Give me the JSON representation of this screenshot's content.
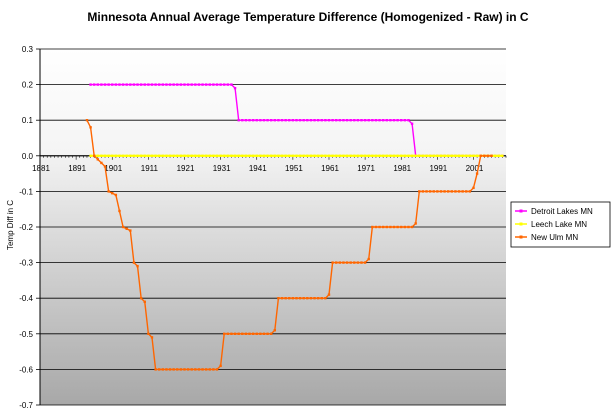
{
  "chart_data": {
    "type": "line",
    "title": "Minnesota Annual Average Temperature Difference (Homogenized - Raw) in C",
    "xlabel": "",
    "ylabel": "Temp Diff in C",
    "xlim": [
      1881,
      2010
    ],
    "ylim": [
      -0.7,
      0.3
    ],
    "x_ticks": [
      "1881",
      "1891",
      "1901",
      "1911",
      "1921",
      "1931",
      "1941",
      "1951",
      "1961",
      "1971",
      "1981",
      "1991",
      "2001"
    ],
    "y_ticks": [
      "0.3",
      "0.2",
      "0.1",
      "0.0",
      "-0.1",
      "-0.2",
      "-0.3",
      "-0.4",
      "-0.5",
      "-0.6",
      "-0.7"
    ],
    "grid": "horizontal",
    "background_bands": "gray gradient below zero",
    "legend_position": "right",
    "series": [
      {
        "name": "Detroit Lakes MN",
        "color": "#ff00ff",
        "x": [
          1895,
          1934,
          1935,
          1936,
          1983,
          1984,
          1985,
          2009
        ],
        "values": [
          0.2,
          0.2,
          0.19,
          0.1,
          0.1,
          0.09,
          0.0,
          0.0
        ]
      },
      {
        "name": "Leech Lake MN",
        "color": "#ffff00",
        "x": [
          1895,
          2009
        ],
        "values": [
          0.0,
          0.0
        ]
      },
      {
        "name": "New Ulm MN",
        "color": "#ff6600",
        "x": [
          1894,
          1895,
          1896,
          1897,
          1898,
          1899,
          1900,
          1902,
          1904,
          1906,
          1907,
          1908,
          1909,
          1910,
          1911,
          1912,
          1913,
          1914,
          1915,
          1916,
          1917,
          1918,
          1919,
          1920,
          1921,
          1922,
          1923,
          1924,
          1925,
          1926,
          1927,
          1928,
          1929,
          1930,
          1931,
          1932,
          1933,
          1934,
          1935,
          1936,
          1937,
          1938,
          1939,
          1940,
          1941,
          1942,
          1943,
          1944,
          1945,
          1946,
          1947,
          1948,
          1949,
          1950,
          1951,
          1952,
          1953,
          1954,
          1955,
          1956,
          1957,
          1958,
          1959,
          1960,
          1961,
          1962,
          1963,
          1964,
          1965,
          1966,
          1967,
          1968,
          1969,
          1970,
          1971,
          1972,
          1973,
          1974,
          1975,
          1976,
          1977,
          1978,
          1979,
          1980,
          1981,
          1982,
          1983,
          1984,
          1985,
          1986,
          1987,
          1988,
          1989,
          1990,
          1991,
          1992,
          1993,
          1994,
          1995,
          1996,
          1997,
          1998,
          1999,
          2000,
          2001,
          2002,
          2003,
          2004,
          2005,
          2006
        ],
        "values": [
          0.1,
          0.08,
          0.0,
          -0.01,
          -0.02,
          -0.03,
          -0.1,
          -0.11,
          -0.2,
          -0.21,
          -0.3,
          -0.31,
          -0.4,
          -0.41,
          -0.5,
          -0.51,
          -0.6,
          -0.6,
          -0.6,
          -0.6,
          -0.6,
          -0.6,
          -0.6,
          -0.6,
          -0.6,
          -0.6,
          -0.6,
          -0.6,
          -0.6,
          -0.6,
          -0.6,
          -0.6,
          -0.6,
          -0.6,
          -0.59,
          -0.5,
          -0.5,
          -0.5,
          -0.5,
          -0.5,
          -0.5,
          -0.5,
          -0.5,
          -0.5,
          -0.5,
          -0.5,
          -0.5,
          -0.5,
          -0.5,
          -0.49,
          -0.4,
          -0.4,
          -0.4,
          -0.4,
          -0.4,
          -0.4,
          -0.4,
          -0.4,
          -0.4,
          -0.4,
          -0.4,
          -0.4,
          -0.4,
          -0.4,
          -0.39,
          -0.3,
          -0.3,
          -0.3,
          -0.3,
          -0.3,
          -0.3,
          -0.3,
          -0.3,
          -0.3,
          -0.3,
          -0.29,
          -0.2,
          -0.2,
          -0.2,
          -0.2,
          -0.2,
          -0.2,
          -0.2,
          -0.2,
          -0.2,
          -0.2,
          -0.2,
          -0.2,
          -0.19,
          -0.1,
          -0.1,
          -0.1,
          -0.1,
          -0.1,
          -0.1,
          -0.1,
          -0.1,
          -0.1,
          -0.1,
          -0.1,
          -0.1,
          -0.1,
          -0.1,
          -0.1,
          -0.09,
          -0.05,
          0.0,
          0.0,
          0.0,
          0.0
        ]
      }
    ]
  }
}
